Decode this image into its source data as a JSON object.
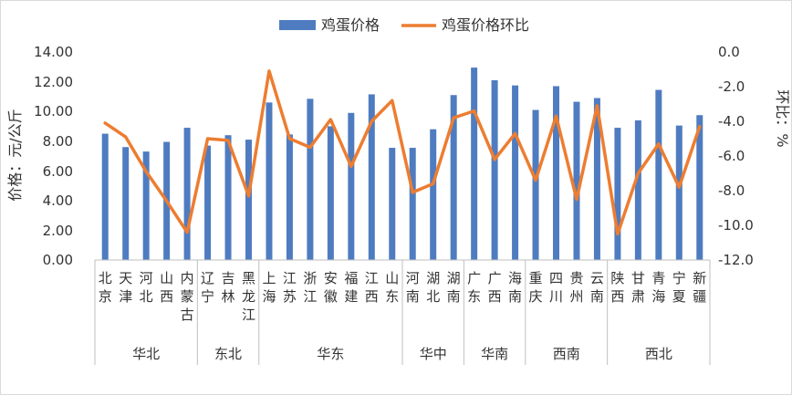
{
  "chart_data": {
    "type": "bar+line",
    "title": "",
    "series": [
      {
        "name": "鸡蛋价格",
        "type": "bar",
        "axis": "left",
        "color": "#4F7CC0",
        "values": [
          8.5,
          7.6,
          7.3,
          7.95,
          8.9,
          7.7,
          8.4,
          8.1,
          10.6,
          8.45,
          10.85,
          9.0,
          9.9,
          11.15,
          7.55,
          7.55,
          8.8,
          11.1,
          12.95,
          12.1,
          11.75,
          10.1,
          11.7,
          10.65,
          10.9,
          8.9,
          9.4,
          11.45,
          9.05,
          9.75
        ]
      },
      {
        "name": "鸡蛋价格环比",
        "type": "line",
        "axis": "right",
        "color": "#ED7D31",
        "values": [
          -4.1,
          -4.9,
          -6.9,
          -8.6,
          -10.4,
          -5.0,
          -5.1,
          -8.3,
          -1.1,
          -5.0,
          -5.5,
          -3.9,
          -6.6,
          -4.0,
          -2.8,
          -8.1,
          -7.6,
          -3.8,
          -3.4,
          -6.2,
          -4.7,
          -7.4,
          -3.7,
          -8.5,
          -3.1,
          -10.5,
          -7.0,
          -5.3,
          -7.8,
          -4.3
        ]
      }
    ],
    "categories": [
      "北京",
      "天津",
      "河北",
      "山西",
      "内蒙古",
      "辽宁",
      "吉林",
      "黑龙江",
      "上海",
      "江苏",
      "浙江",
      "安徽",
      "福建",
      "江西",
      "山东",
      "河南",
      "湖北",
      "湖南",
      "广东",
      "广西",
      "海南",
      "重庆",
      "四川",
      "贵州",
      "云南",
      "陕西",
      "甘肃",
      "青海",
      "宁夏",
      "新疆"
    ],
    "regions": [
      {
        "label": "华北",
        "count": 5
      },
      {
        "label": "东北",
        "count": 3
      },
      {
        "label": "华东",
        "count": 7
      },
      {
        "label": "华中",
        "count": 3
      },
      {
        "label": "华南",
        "count": 3
      },
      {
        "label": "西南",
        "count": 4
      },
      {
        "label": "西北",
        "count": 5
      }
    ],
    "ylabel_left": "价格：元/公斤",
    "ylabel_right": "环比：%",
    "ylim_left": [
      0,
      14
    ],
    "ylim_right": [
      -12,
      0
    ],
    "yticks_left": [
      "0.00",
      "2.00",
      "4.00",
      "6.00",
      "8.00",
      "10.00",
      "12.00",
      "14.00"
    ],
    "yticks_right": [
      "-12.0",
      "-10.0",
      "-8.0",
      "-6.0",
      "-4.0",
      "-2.0",
      "0.0"
    ],
    "legend_position": "top-center",
    "grid": false
  }
}
